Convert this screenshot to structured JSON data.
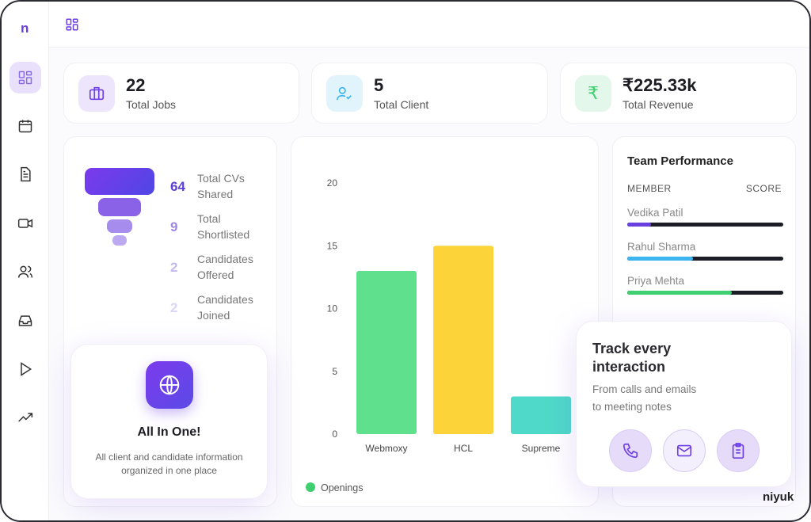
{
  "sidebar": {
    "logo": "n",
    "items": [
      "dashboard",
      "calendar",
      "document",
      "video",
      "users",
      "inbox",
      "play",
      "trending"
    ]
  },
  "stats": [
    {
      "value": "22",
      "label": "Total Jobs",
      "icon": "briefcase-icon"
    },
    {
      "value": "5",
      "label": "Total Client",
      "icon": "user-check-icon"
    },
    {
      "value": "₹225.33k",
      "label": "Total Revenue",
      "icon": "rupee-icon"
    }
  ],
  "funnel": [
    {
      "value": "64",
      "label": "Total CVs Shared",
      "color": "#5b3fd6"
    },
    {
      "value": "9",
      "label": "Total Shortlisted",
      "color": "#9d88e6"
    },
    {
      "value": "2",
      "label": "Candidates Offered",
      "color": "#c5b8f0"
    },
    {
      "value": "2",
      "label": "Candidates Joined",
      "color": "#ddd5f7"
    }
  ],
  "all_in_one": {
    "title": "All In One!",
    "desc": "All client and candidate information organized in one place"
  },
  "chart_data": {
    "type": "bar",
    "categories": [
      "Webmoxy",
      "HCL",
      "Supreme"
    ],
    "values": [
      13,
      15,
      3
    ],
    "colors": [
      "#5fe08c",
      "#fcd43a",
      "#4fd9c8"
    ],
    "ylim": [
      0,
      20
    ],
    "yticks": [
      0,
      5,
      10,
      15,
      20
    ],
    "legend": "Openings",
    "legend_color": "#3ecf70",
    "legend_position": "bottom-left"
  },
  "team": {
    "title": "Team Performance",
    "col_member": "MEMBER",
    "col_score": "SCORE",
    "members": [
      {
        "name": "Vedika Patil",
        "score": 0.15,
        "color": "#6a3fe0"
      },
      {
        "name": "Rahul Sharma",
        "score": 0.42,
        "color": "#3bb4f0"
      },
      {
        "name": "Priya Mehta",
        "score": 0.67,
        "color": "#3ecf70"
      }
    ]
  },
  "track": {
    "title": "Track every interaction",
    "desc1": "From calls and emails",
    "desc2": "to meeting notes"
  },
  "brand": "niyuk"
}
